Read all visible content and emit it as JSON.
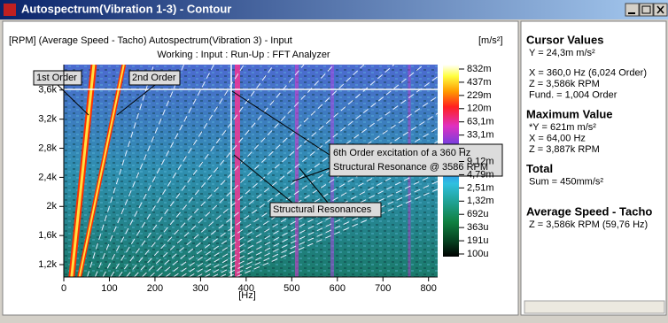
{
  "window": {
    "title": "Autospectrum(Vibration 1-3) - Contour"
  },
  "chart_data": {
    "type": "contour",
    "title": "[RPM] (Average Speed - Tacho) Autospectrum(Vibration 3) - Input",
    "unit": "[m/s²]",
    "subtitle": "Working : Input : Run-Up : FFT Analyzer",
    "x_label": "[Hz]",
    "xlim": [
      0,
      820
    ],
    "xticks": [
      0,
      100,
      200,
      300,
      400,
      500,
      600,
      700,
      800
    ],
    "ylim": [
      1030,
      3950
    ],
    "yticks": [
      {
        "value": 1200,
        "label": "1,2k"
      },
      {
        "value": 1600,
        "label": "1,6k"
      },
      {
        "value": 2000,
        "label": "2k"
      },
      {
        "value": 2400,
        "label": "2,4k"
      },
      {
        "value": 2800,
        "label": "2,8k"
      },
      {
        "value": 3200,
        "label": "3,2k"
      },
      {
        "value": 3600,
        "label": "3,6k"
      }
    ],
    "colorbar_labels": [
      "832m",
      "437m",
      "229m",
      "120m",
      "63,1m",
      "33,1m",
      null,
      "9,12m",
      "4,79m",
      "2,51m",
      "1,32m",
      "692u",
      "363u",
      "191u",
      "100u"
    ],
    "annotations": {
      "first_order": "1st Order",
      "second_order": "2nd Order",
      "resonance_note": [
        "6th Order excitation of a 360 Hz",
        "Structural Resonance @ 3586 RPM"
      ],
      "resonances": "Structural Resonances"
    }
  },
  "panel": {
    "cursor_values": {
      "heading": "Cursor Values",
      "lines": [
        "Y = 24,3m m/s²",
        "X = 360,0 Hz  (6,024 Order)",
        "Z = 3,586k RPM",
        "Fund. = 1,004 Order"
      ]
    },
    "maximum_value": {
      "heading": "Maximum Value",
      "lines": [
        "*Y = 621m m/s²",
        "X = 64,00 Hz",
        "Z = 3,887k RPM"
      ]
    },
    "total": {
      "heading": "Total",
      "lines": [
        "Sum = 450mm/s²"
      ]
    },
    "average_speed": {
      "heading": "Average Speed - Tacho",
      "lines": [
        "Z = 3,586k RPM (59,76 Hz)"
      ]
    }
  }
}
